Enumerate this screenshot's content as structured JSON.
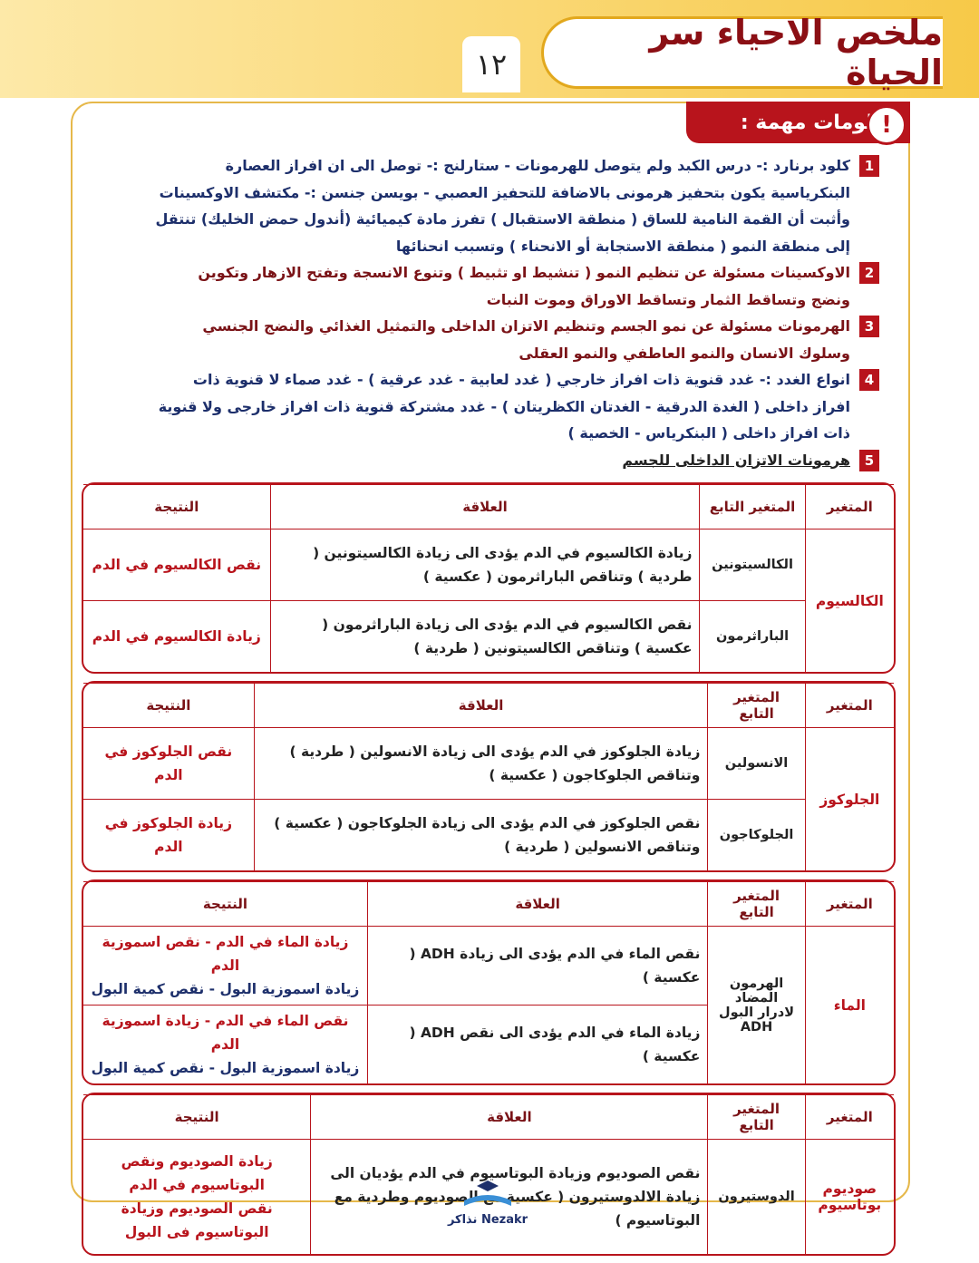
{
  "header": {
    "title": "ملخص الاحياء سر الحياة",
    "page_number": "١٢"
  },
  "section_title": "معلومات مهمة :",
  "items": [
    {
      "number": "1",
      "text": "كلود برنارد :- درس الكبد ولم يتوصل للهرمونات - ستارلنج :- توصل الى ان افراز العصارة البنكرياسية يكون بتحفيز هرمونى بالاضافة للتحفيز العصبي - بويسن جنسن :- مكتشف الاوكسينات وأثبت أن القمة النامية للساق ( منطقة الاستقبال ) تفرز مادة كيميائية (أندول حمض الخليك) تنتقل إلى منطقة النمو ( منطقة الاستجابة أو الانحناء ) وتسبب انحنائها"
    },
    {
      "number": "2",
      "text": "الاوكسينات مسئولة عن تنظيم النمو ( تنشيط او تثبيط ) وتنوع الانسجة وتفتح الازهار وتكوين ونضج وتساقط الثمار وتساقط الاوراق وموت النبات"
    },
    {
      "number": "3",
      "text": "الهرمونات مسئولة عن نمو الجسم وتنظيم الاتزان الداخلى والتمثيل الغذائي والنضج الجنسي وسلوك الانسان والنمو العاطفي والنمو العقلى"
    },
    {
      "number": "4",
      "text": "انواع الغدد :- غدد قنوية ذات افراز خارجي ( غدد لعابية - غدد عرقية ) - غدد صماء لا قنوية ذات افراز داخلى ( الغدة الدرقية - الغدتان الكظريتان ) - غدد مشتركة قنوية ذات افراز خارجى ولا قنوية ذات افراز داخلى ( البنكرياس - الخصية )"
    },
    {
      "number": "5",
      "text": "هرمونات الاتزان الداخلى للجسم"
    }
  ],
  "tables": [
    {
      "headers": [
        "المتغير",
        "المتغير التابع",
        "العلاقة",
        "النتيجة"
      ],
      "variable": "الكالسيوم",
      "rows": [
        {
          "dependent": "الكالسيتونين",
          "relation": "زيادة الكالسيوم في الدم يؤدى الى زيادة الكالسيتونين ( طردية ) وتناقص الباراثرمون ( عكسية )",
          "result": [
            "نقص الكالسيوم في الدم"
          ]
        },
        {
          "dependent": "الباراثرمون",
          "relation": "نقص الكالسيوم في الدم يؤدى الى زيادة الباراثرمون ( عكسية ) وتناقص الكالسيتونين ( طردية )",
          "result": [
            "زيادة الكالسيوم في الدم"
          ]
        }
      ]
    },
    {
      "headers": [
        "المتغير",
        "المتغير التابع",
        "العلاقة",
        "النتيجة"
      ],
      "variable": "الجلوكوز",
      "rows": [
        {
          "dependent": "الانسولين",
          "relation": "زيادة الجلوكوز في الدم يؤدى الى زيادة الانسولين ( طردية ) وتناقص الجلوكاجون ( عكسية )",
          "result": [
            "نقص الجلوكوز في الدم"
          ]
        },
        {
          "dependent": "الجلوكاجون",
          "relation": "نقص الجلوكوز في الدم يؤدى الى زيادة الجلوكاجون ( عكسية ) وتناقص الانسولين ( طردية )",
          "result": [
            "زيادة الجلوكوز في الدم"
          ]
        }
      ]
    },
    {
      "headers": [
        "المتغير",
        "المتغير التابع",
        "العلاقة",
        "النتيجة"
      ],
      "variable": "الماء",
      "dependent": "الهرمون المضاد لادرار البول ADH",
      "rows": [
        {
          "relation": "نقص الماء في الدم يؤدى الى زيادة ADH ( عكسية )",
          "result": [
            "زيادة الماء في الدم - نقص اسموزية الدم",
            "زيادة اسموزية البول - نقص كمية البول"
          ]
        },
        {
          "relation": "زيادة الماء في الدم يؤدى الى نقص ADH ( عكسية )",
          "result": [
            "نقص الماء في الدم - زيادة اسموزية الدم",
            "زيادة اسموزية البول - نقص كمية البول"
          ]
        }
      ]
    },
    {
      "headers": [
        "المتغير",
        "المتغير التابع",
        "العلاقة",
        "النتيجة"
      ],
      "variable": "صوديوم بوتاسيوم",
      "rows": [
        {
          "dependent": "الدوستيرون",
          "relation": "نقص الصوديوم وزيادة البوتاسيوم في الدم يؤديان الى زيادة الالدوستيرون ( عكسية مع الصوديوم وطردية مع البوتاسيوم )",
          "result": [
            "زيادة الصوديوم ونقص البوتاسيوم في الدم",
            "نقص الصوديوم وزيادة البوتاسيوم فى البول"
          ]
        }
      ]
    }
  ],
  "footer": {
    "logo_latin": "Nezakr",
    "logo_arabic": "نذاكر"
  }
}
